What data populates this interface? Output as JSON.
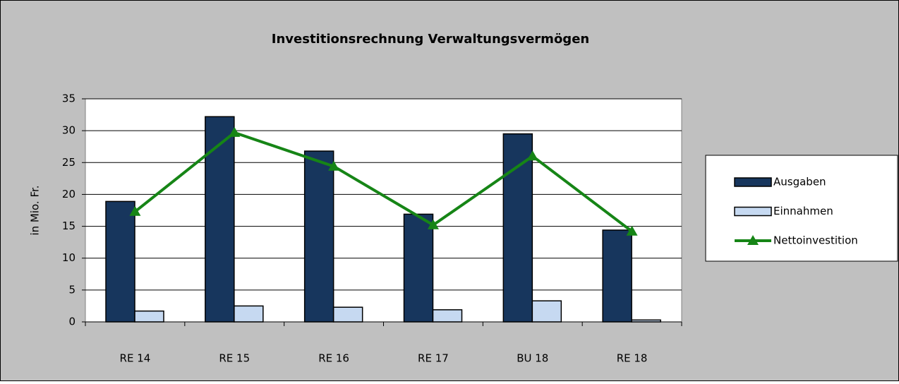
{
  "chart_data": {
    "type": "bar",
    "title": "Investitionsrechnung Verwaltungsvermögen",
    "y_label": "in Mio. Fr.",
    "categories": [
      "RE 14",
      "RE 15",
      "RE 16",
      "RE 17",
      "BU 18",
      "RE 18"
    ],
    "series": [
      {
        "name": "Ausgaben",
        "type": "bar",
        "color": "#17365d",
        "values": [
          18.9,
          32.2,
          26.8,
          16.9,
          29.5,
          14.4
        ]
      },
      {
        "name": "Einnahmen",
        "type": "bar",
        "color": "#c6d9f1",
        "values": [
          1.7,
          2.5,
          2.3,
          1.9,
          3.3,
          0.3
        ]
      },
      {
        "name": "Nettoinvestition",
        "type": "line",
        "color": "#168516",
        "values": [
          17.3,
          29.7,
          24.4,
          15.2,
          26.0,
          14.2
        ]
      }
    ],
    "ylim": [
      0,
      35
    ],
    "yticks": [
      0,
      5,
      10,
      15,
      20,
      25,
      30,
      35
    ],
    "grid": true,
    "legend": "right"
  }
}
